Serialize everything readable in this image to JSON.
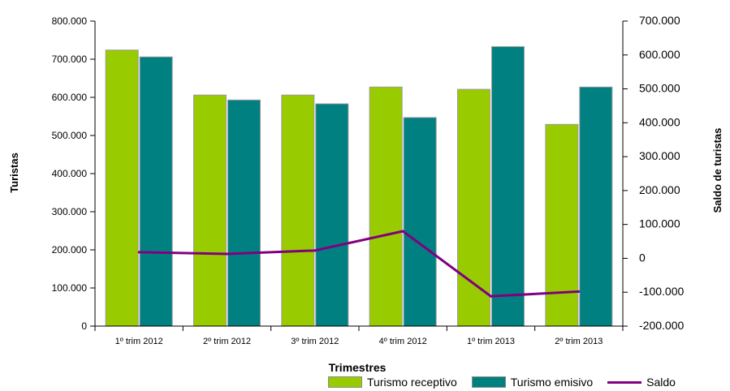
{
  "chart_data": {
    "type": "bar",
    "categories": [
      "1º trim 2012",
      "2º trim 2012",
      "3º trim 2012",
      "4º trim 2012",
      "1º trim 2013",
      "2º trim 2013"
    ],
    "series": [
      {
        "name": "Turismo receptivo",
        "axis": "left",
        "color": "#99cc00",
        "values": [
          724000,
          606000,
          606000,
          627000,
          621000,
          529000
        ]
      },
      {
        "name": "Turismo emisivo",
        "axis": "left",
        "color": "#008080",
        "values": [
          706000,
          593000,
          583000,
          547000,
          733000,
          627000
        ]
      },
      {
        "name": "Saldo",
        "type": "line",
        "axis": "right",
        "color": "#800080",
        "values": [
          18000,
          13000,
          23000,
          80000,
          -112000,
          -98000
        ]
      }
    ],
    "xlabel": "Trimestres",
    "ylabel": "Turistas",
    "y2label": "Saldo de turistas",
    "ylim": [
      0,
      800000
    ],
    "y2lim": [
      -200000,
      700000
    ],
    "yticks": [
      "0",
      "100.000",
      "200.000",
      "300.000",
      "400.000",
      "500.000",
      "600.000",
      "700.000",
      "800.000"
    ],
    "y2ticks": [
      "-200.000",
      "-100.000",
      "0",
      "100.000",
      "200.000",
      "300.000",
      "400.000",
      "500.000",
      "600.000",
      "700.000"
    ],
    "grid": false,
    "legend_position": "bottom-right"
  }
}
